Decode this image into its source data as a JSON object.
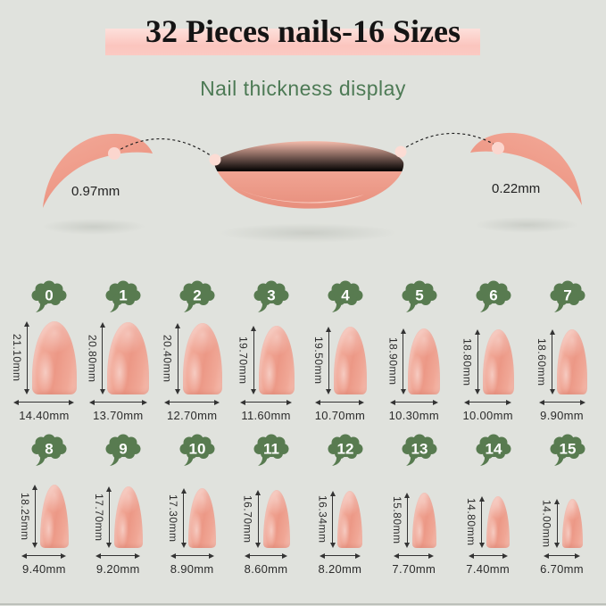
{
  "page": {
    "title": "32 Pieces nails-16 Sizes",
    "subtitle": "Nail thickness display"
  },
  "thickness": {
    "left_value": "0.97mm",
    "right_value": "0.22mm"
  },
  "colors": {
    "background": "#e0e2dd",
    "banner_pink": "#fbc5be",
    "cloud_green": "#587b50",
    "subtitle_green": "#4d7a55",
    "nail_salmon": "#efa091",
    "label_text": "#2b2b2b"
  },
  "sizes": [
    {
      "num": "0",
      "height_label": "21.10mm",
      "width_label": "14.40mm",
      "height_mm": 21.1,
      "width_mm": 14.4
    },
    {
      "num": "1",
      "height_label": "20.80mm",
      "width_label": "13.70mm",
      "height_mm": 20.8,
      "width_mm": 13.7
    },
    {
      "num": "2",
      "height_label": "20.40mm",
      "width_label": "12.70mm",
      "height_mm": 20.4,
      "width_mm": 12.7
    },
    {
      "num": "3",
      "height_label": "19.70mm",
      "width_label": "11.60mm",
      "height_mm": 19.7,
      "width_mm": 11.6
    },
    {
      "num": "4",
      "height_label": "19.50mm",
      "width_label": "10.70mm",
      "height_mm": 19.5,
      "width_mm": 10.7
    },
    {
      "num": "5",
      "height_label": "18.90mm",
      "width_label": "10.30mm",
      "height_mm": 18.9,
      "width_mm": 10.3
    },
    {
      "num": "6",
      "height_label": "18.80mm",
      "width_label": "10.00mm",
      "height_mm": 18.8,
      "width_mm": 10.0
    },
    {
      "num": "7",
      "height_label": "18.60mm",
      "width_label": "9.90mm",
      "height_mm": 18.6,
      "width_mm": 9.9
    },
    {
      "num": "8",
      "height_label": "18.25mm",
      "width_label": "9.40mm",
      "height_mm": 18.25,
      "width_mm": 9.4
    },
    {
      "num": "9",
      "height_label": "17.70mm",
      "width_label": "9.20mm",
      "height_mm": 17.7,
      "width_mm": 9.2
    },
    {
      "num": "10",
      "height_label": "17.30mm",
      "width_label": "8.90mm",
      "height_mm": 17.3,
      "width_mm": 8.9
    },
    {
      "num": "11",
      "height_label": "16.70mm",
      "width_label": "8.60mm",
      "height_mm": 16.7,
      "width_mm": 8.6
    },
    {
      "num": "12",
      "height_label": "16.34mm",
      "width_label": "8.20mm",
      "height_mm": 16.34,
      "width_mm": 8.2
    },
    {
      "num": "13",
      "height_label": "15.80mm",
      "width_label": "7.70mm",
      "height_mm": 15.8,
      "width_mm": 7.7
    },
    {
      "num": "14",
      "height_label": "14.80mm",
      "width_label": "7.40mm",
      "height_mm": 14.8,
      "width_mm": 7.4
    },
    {
      "num": "15",
      "height_label": "14.00mm",
      "width_label": "6.70mm",
      "height_mm": 14.0,
      "width_mm": 6.7
    }
  ]
}
